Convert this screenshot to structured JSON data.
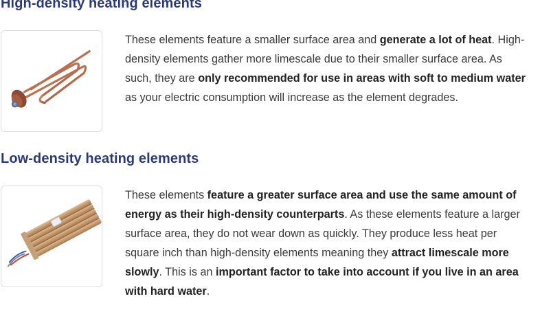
{
  "sections": [
    {
      "heading": "High-density heating elements",
      "image_alt": "Copper high-density immersion heating element",
      "paragraph": [
        {
          "text": "These elements feature a smaller surface area and ",
          "bold": false
        },
        {
          "text": "generate a lot of heat",
          "bold": true
        },
        {
          "text": ". High-density elements gather more limescale due to their smaller surface area. As such, they are ",
          "bold": false
        },
        {
          "text": "only recommended for use in areas with soft to medium water",
          "bold": true
        },
        {
          "text": " as your electric consumption will increase as the element degrades.",
          "bold": false
        }
      ]
    },
    {
      "heading": "Low-density heating elements",
      "image_alt": "Ceramic-sheathed low-density heating element with wires",
      "paragraph": [
        {
          "text": "These elements ",
          "bold": false
        },
        {
          "text": "feature a greater surface area and use the same amount of energy as their high-density counterparts",
          "bold": true
        },
        {
          "text": ". As these elements feature a larger surface area, they do not wear down as quickly. They produce less heat per square inch than high-density elements meaning they ",
          "bold": false
        },
        {
          "text": "attract limescale more slowly",
          "bold": true
        },
        {
          "text": ". This is an ",
          "bold": false
        },
        {
          "text": "important factor to take into account if you live in an area with hard water",
          "bold": true
        },
        {
          "text": ".",
          "bold": false
        }
      ]
    }
  ],
  "colors": {
    "heading": "#2b3a73",
    "body_text": "#3a3a3a",
    "thumb_border": "#dcdcdc",
    "copper": "#b86a4b",
    "ceramic": "#c9a27a"
  }
}
